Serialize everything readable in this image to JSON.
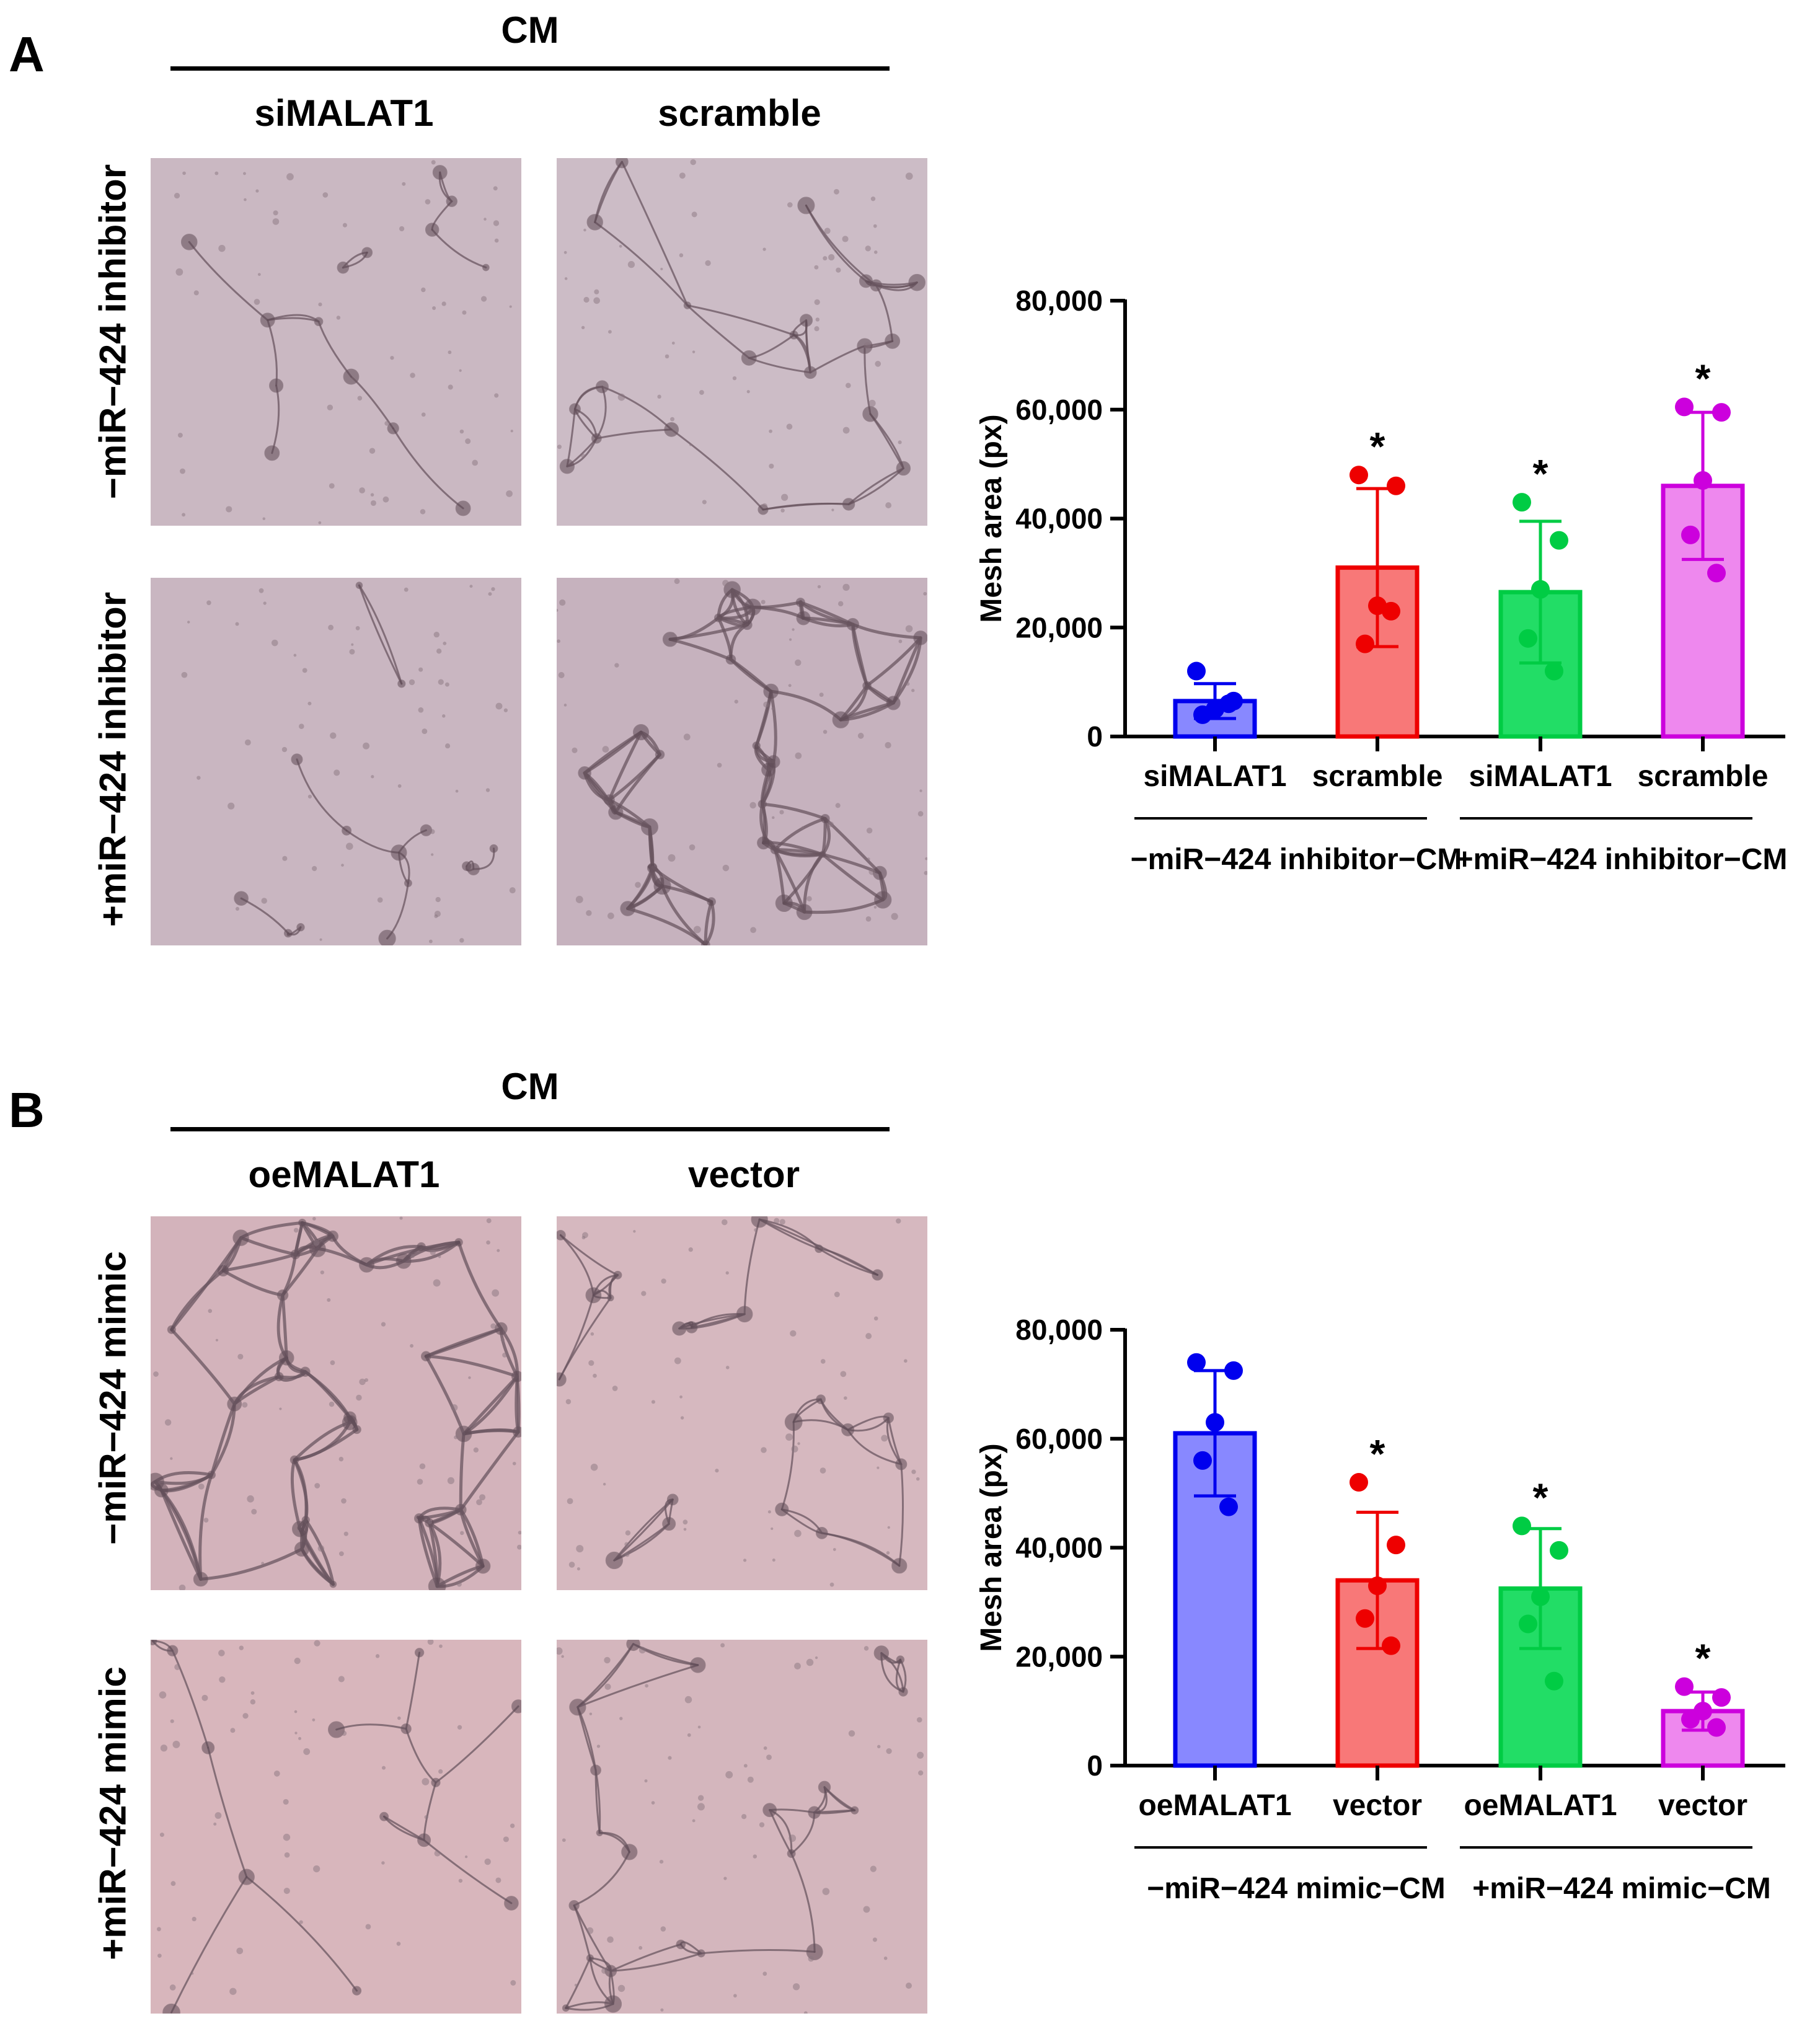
{
  "panels": [
    {
      "letter": "A",
      "cm_title": "CM",
      "columns": [
        "siMALAT1",
        "scramble"
      ],
      "rows": [
        "−miR−424 inhibitor",
        "+miR−424 inhibitor"
      ]
    },
    {
      "letter": "B",
      "cm_title": "CM",
      "columns": [
        "oeMALAT1",
        "vector"
      ],
      "rows": [
        "−miR−424 mimic",
        "+miR−424 mimic"
      ]
    }
  ],
  "chart_data": [
    {
      "type": "bar",
      "title": "",
      "ylabel": "Mesh area (px)",
      "ylim": [
        0,
        80000
      ],
      "yticks": [
        0,
        20000,
        40000,
        60000,
        80000
      ],
      "ytick_labels": [
        "0",
        "20,000",
        "40,000",
        "60,000",
        "80,000"
      ],
      "categories": [
        "siMALAT1",
        "scramble",
        "siMALAT1",
        "scramble"
      ],
      "groups": [
        {
          "label": "−miR−424 inhibitor−CM",
          "members": [
            0,
            1
          ]
        },
        {
          "label": "+miR−424 inhibitor−CM",
          "members": [
            2,
            3
          ]
        }
      ],
      "values": [
        6500,
        31000,
        26500,
        46000
      ],
      "errors": [
        3200,
        14500,
        13000,
        13500
      ],
      "points": [
        [
          12000,
          6500,
          5000,
          4000,
          6000
        ],
        [
          48000,
          46000,
          24000,
          17000,
          23000
        ],
        [
          43000,
          36000,
          27000,
          18000,
          12000
        ],
        [
          60500,
          59500,
          47000,
          37000,
          30000
        ]
      ],
      "significance": [
        "",
        "*",
        "*",
        "*"
      ],
      "colors": [
        "#0000ee",
        "#ee0000",
        "#00cc44",
        "#cc00dd"
      ],
      "fills": [
        "#8888ff",
        "#f87878",
        "#22dd66",
        "#ee88ee"
      ]
    },
    {
      "type": "bar",
      "title": "",
      "ylabel": "Mesh area (px)",
      "ylim": [
        0,
        80000
      ],
      "yticks": [
        0,
        20000,
        40000,
        60000,
        80000
      ],
      "ytick_labels": [
        "0",
        "20,000",
        "40,000",
        "60,000",
        "80,000"
      ],
      "categories": [
        "oeMALAT1",
        "vector",
        "oeMALAT1",
        "vector"
      ],
      "groups": [
        {
          "label": "−miR−424 mimic−CM",
          "members": [
            0,
            1
          ]
        },
        {
          "label": "+miR−424 mimic−CM",
          "members": [
            2,
            3
          ]
        }
      ],
      "values": [
        61000,
        34000,
        32500,
        10000
      ],
      "errors": [
        11500,
        12500,
        11000,
        3500
      ],
      "points": [
        [
          74000,
          72500,
          63000,
          56000,
          47500
        ],
        [
          52000,
          40500,
          33000,
          27000,
          22000
        ],
        [
          44000,
          39500,
          31000,
          26000,
          15500
        ],
        [
          14500,
          12500,
          10000,
          8500,
          7000
        ]
      ],
      "significance": [
        "",
        "*",
        "*",
        "*"
      ],
      "colors": [
        "#0000ee",
        "#ee0000",
        "#00cc44",
        "#cc00dd"
      ],
      "fills": [
        "#8888ff",
        "#f87878",
        "#22dd66",
        "#ee88ee"
      ]
    }
  ]
}
